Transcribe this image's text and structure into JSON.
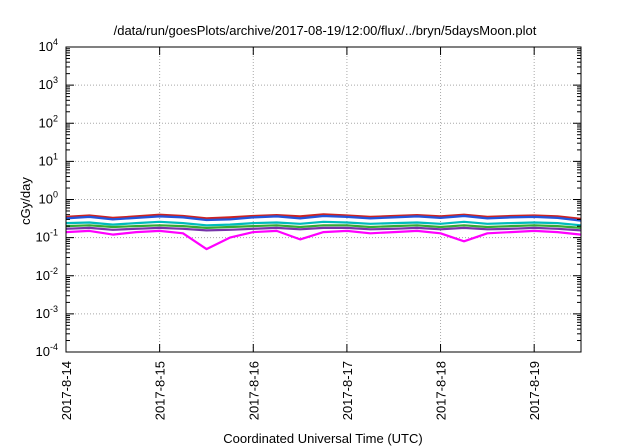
{
  "chart_data": {
    "type": "line",
    "title": "/data/run/goesPlots/archive/2017-08-19/12:00/flux/../bryn/5daysMoon.plot",
    "xlabel": "Coordinated Universal Time (UTC)",
    "ylabel": "cGy/day",
    "yscale": "log",
    "ylim": [
      0.0001,
      10000
    ],
    "xlim": [
      "2017-08-14",
      "2017-08-19 12:00"
    ],
    "grid": true,
    "x_ticks": [
      "2017-8-14",
      "2017-8-15",
      "2017-8-16",
      "2017-8-17",
      "2017-8-18",
      "2017-8-19"
    ],
    "y_ticks": [
      {
        "base": "10",
        "exp": "-4"
      },
      {
        "base": "10",
        "exp": "-3"
      },
      {
        "base": "10",
        "exp": "-2"
      },
      {
        "base": "10",
        "exp": "-1"
      },
      {
        "base": "10",
        "exp": "0"
      },
      {
        "base": "10",
        "exp": "1"
      },
      {
        "base": "10",
        "exp": "2"
      },
      {
        "base": "10",
        "exp": "3"
      },
      {
        "base": "10",
        "exp": "4"
      }
    ],
    "x": [
      "2017-08-14 00:00",
      "2017-08-14 06:00",
      "2017-08-14 12:00",
      "2017-08-14 18:00",
      "2017-08-15 00:00",
      "2017-08-15 06:00",
      "2017-08-15 12:00",
      "2017-08-15 18:00",
      "2017-08-16 00:00",
      "2017-08-16 06:00",
      "2017-08-16 12:00",
      "2017-08-16 18:00",
      "2017-08-17 00:00",
      "2017-08-17 06:00",
      "2017-08-17 12:00",
      "2017-08-17 18:00",
      "2017-08-18 00:00",
      "2017-08-18 06:00",
      "2017-08-18 12:00",
      "2017-08-18 18:00",
      "2017-08-19 00:00",
      "2017-08-19 06:00",
      "2017-08-19 12:00"
    ],
    "series": [
      {
        "color": "#cc2222",
        "values": [
          0.35,
          0.38,
          0.33,
          0.36,
          0.4,
          0.37,
          0.32,
          0.34,
          0.37,
          0.39,
          0.36,
          0.41,
          0.38,
          0.35,
          0.37,
          0.39,
          0.36,
          0.4,
          0.35,
          0.37,
          0.38,
          0.36,
          0.31
        ]
      },
      {
        "color": "#2255dd",
        "values": [
          0.32,
          0.35,
          0.3,
          0.33,
          0.36,
          0.34,
          0.29,
          0.3,
          0.34,
          0.36,
          0.32,
          0.37,
          0.35,
          0.32,
          0.34,
          0.36,
          0.33,
          0.37,
          0.32,
          0.34,
          0.35,
          0.33,
          0.28
        ]
      },
      {
        "color": "#00bbbb",
        "values": [
          0.24,
          0.25,
          0.22,
          0.24,
          0.26,
          0.24,
          0.21,
          0.22,
          0.24,
          0.25,
          0.23,
          0.26,
          0.25,
          0.23,
          0.24,
          0.25,
          0.23,
          0.26,
          0.23,
          0.24,
          0.25,
          0.24,
          0.21
        ]
      },
      {
        "color": "#33aa33",
        "values": [
          0.2,
          0.21,
          0.19,
          0.2,
          0.21,
          0.2,
          0.18,
          0.19,
          0.2,
          0.21,
          0.19,
          0.21,
          0.21,
          0.19,
          0.2,
          0.21,
          0.19,
          0.21,
          0.19,
          0.2,
          0.21,
          0.2,
          0.18
        ]
      },
      {
        "color": "#7733aa",
        "values": [
          0.17,
          0.18,
          0.16,
          0.17,
          0.18,
          0.17,
          0.155,
          0.16,
          0.17,
          0.18,
          0.165,
          0.18,
          0.18,
          0.165,
          0.17,
          0.18,
          0.165,
          0.18,
          0.165,
          0.17,
          0.18,
          0.17,
          0.155
        ]
      },
      {
        "color": "#ff00ff",
        "values": [
          0.14,
          0.15,
          0.12,
          0.14,
          0.15,
          0.13,
          0.05,
          0.1,
          0.14,
          0.15,
          0.09,
          0.14,
          0.15,
          0.13,
          0.14,
          0.15,
          0.13,
          0.08,
          0.13,
          0.14,
          0.15,
          0.14,
          0.12
        ]
      }
    ]
  }
}
